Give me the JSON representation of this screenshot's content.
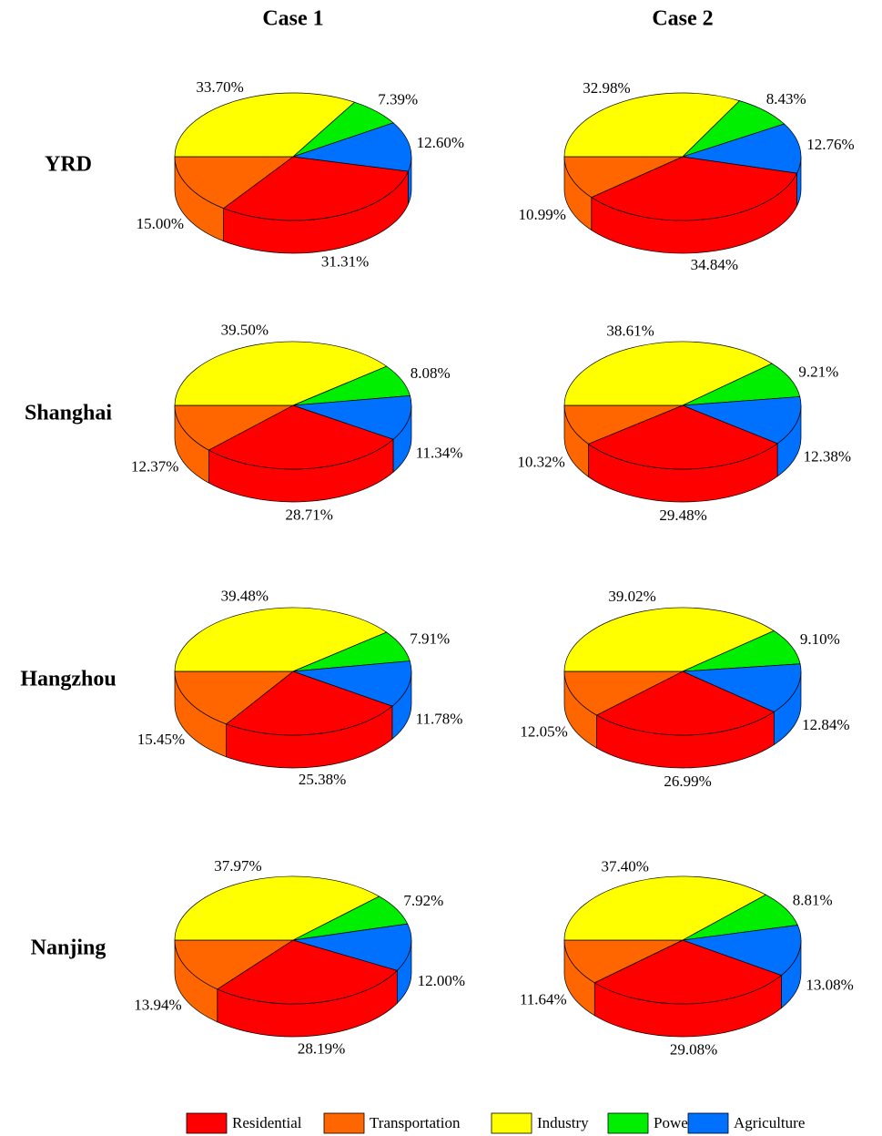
{
  "columns": [
    "Case 1",
    "Case 2"
  ],
  "rows": [
    "YRD",
    "Shanghai",
    "Hangzhou",
    "Nanjing"
  ],
  "categories": [
    "Residential",
    "Transportation",
    "Industry",
    "Power",
    "Agriculture"
  ],
  "colors": [
    "#ff0000",
    "#ff6600",
    "#ffff00",
    "#00ee00",
    "#0070ff"
  ],
  "chart_data": [
    {
      "type": "pie",
      "values": [
        31.31,
        15.0,
        33.7,
        7.39,
        12.6
      ],
      "value_labels": [
        "31.31%",
        "15.00%",
        "33.70%",
        "7.39%",
        "12.60%"
      ]
    },
    {
      "type": "pie",
      "values": [
        34.84,
        10.99,
        32.98,
        8.43,
        12.76
      ],
      "value_labels": [
        "34.84%",
        "10.99%",
        "32.98%",
        "8.43%",
        "12.76%"
      ]
    },
    {
      "type": "pie",
      "values": [
        28.71,
        12.37,
        39.5,
        8.08,
        11.34
      ],
      "value_labels": [
        "28.71%",
        "12.37%",
        "39.50%",
        "8.08%",
        "11.34%"
      ]
    },
    {
      "type": "pie",
      "values": [
        29.48,
        10.32,
        38.61,
        9.21,
        12.38
      ],
      "value_labels": [
        "29.48%",
        "10.32%",
        "38.61%",
        "9.21%",
        "12.38%"
      ]
    },
    {
      "type": "pie",
      "values": [
        25.38,
        15.45,
        39.48,
        7.91,
        11.78
      ],
      "value_labels": [
        "25.38%",
        "15.45%",
        "39.48%",
        "7.91%",
        "11.78%"
      ]
    },
    {
      "type": "pie",
      "values": [
        26.99,
        12.05,
        39.02,
        9.1,
        12.84
      ],
      "value_labels": [
        "26.99%",
        "12.05%",
        "39.02%",
        "9.10%",
        "12.84%"
      ]
    },
    {
      "type": "pie",
      "values": [
        28.19,
        13.94,
        37.97,
        7.92,
        12.0
      ],
      "value_labels": [
        "28.19%",
        "13.94%",
        "37.97%",
        "7.92%",
        "12.00%"
      ]
    },
    {
      "type": "pie",
      "values": [
        29.08,
        11.64,
        37.4,
        8.81,
        13.08
      ],
      "value_labels": [
        "29.08%",
        "11.64%",
        "37.40%",
        "8.81%",
        "13.08%"
      ]
    }
  ]
}
